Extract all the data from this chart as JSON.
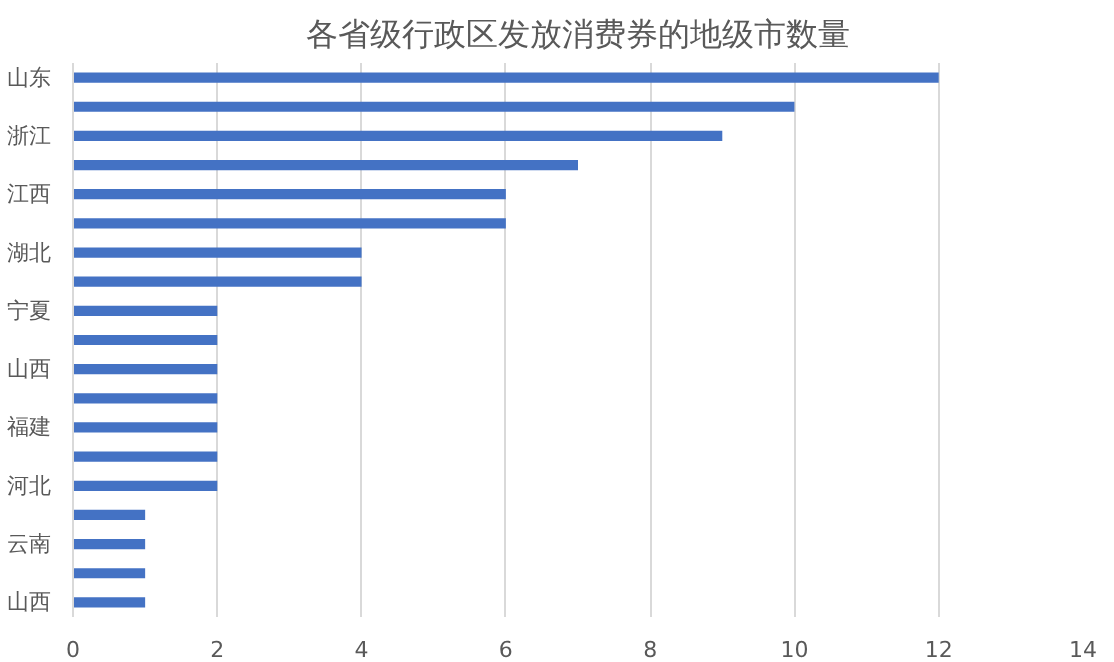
{
  "chart_data": {
    "type": "bar",
    "orientation": "horizontal",
    "title": "各省级行政区发放消费券的地级市数量",
    "categories": [
      "山东",
      null,
      "浙江",
      null,
      "江西",
      null,
      "湖北",
      null,
      "宁夏",
      null,
      "山西",
      null,
      "福建",
      null,
      "河北",
      null,
      "云南",
      null,
      "山西"
    ],
    "values": [
      12,
      10,
      9,
      7,
      6,
      6,
      4,
      4,
      2,
      2,
      2,
      2,
      2,
      2,
      2,
      1,
      1,
      1,
      1
    ],
    "color": "#4472c4",
    "xlim": [
      0,
      14
    ],
    "xticks": [
      0,
      2,
      4,
      6,
      8,
      10,
      12,
      14
    ],
    "grid": "x"
  }
}
